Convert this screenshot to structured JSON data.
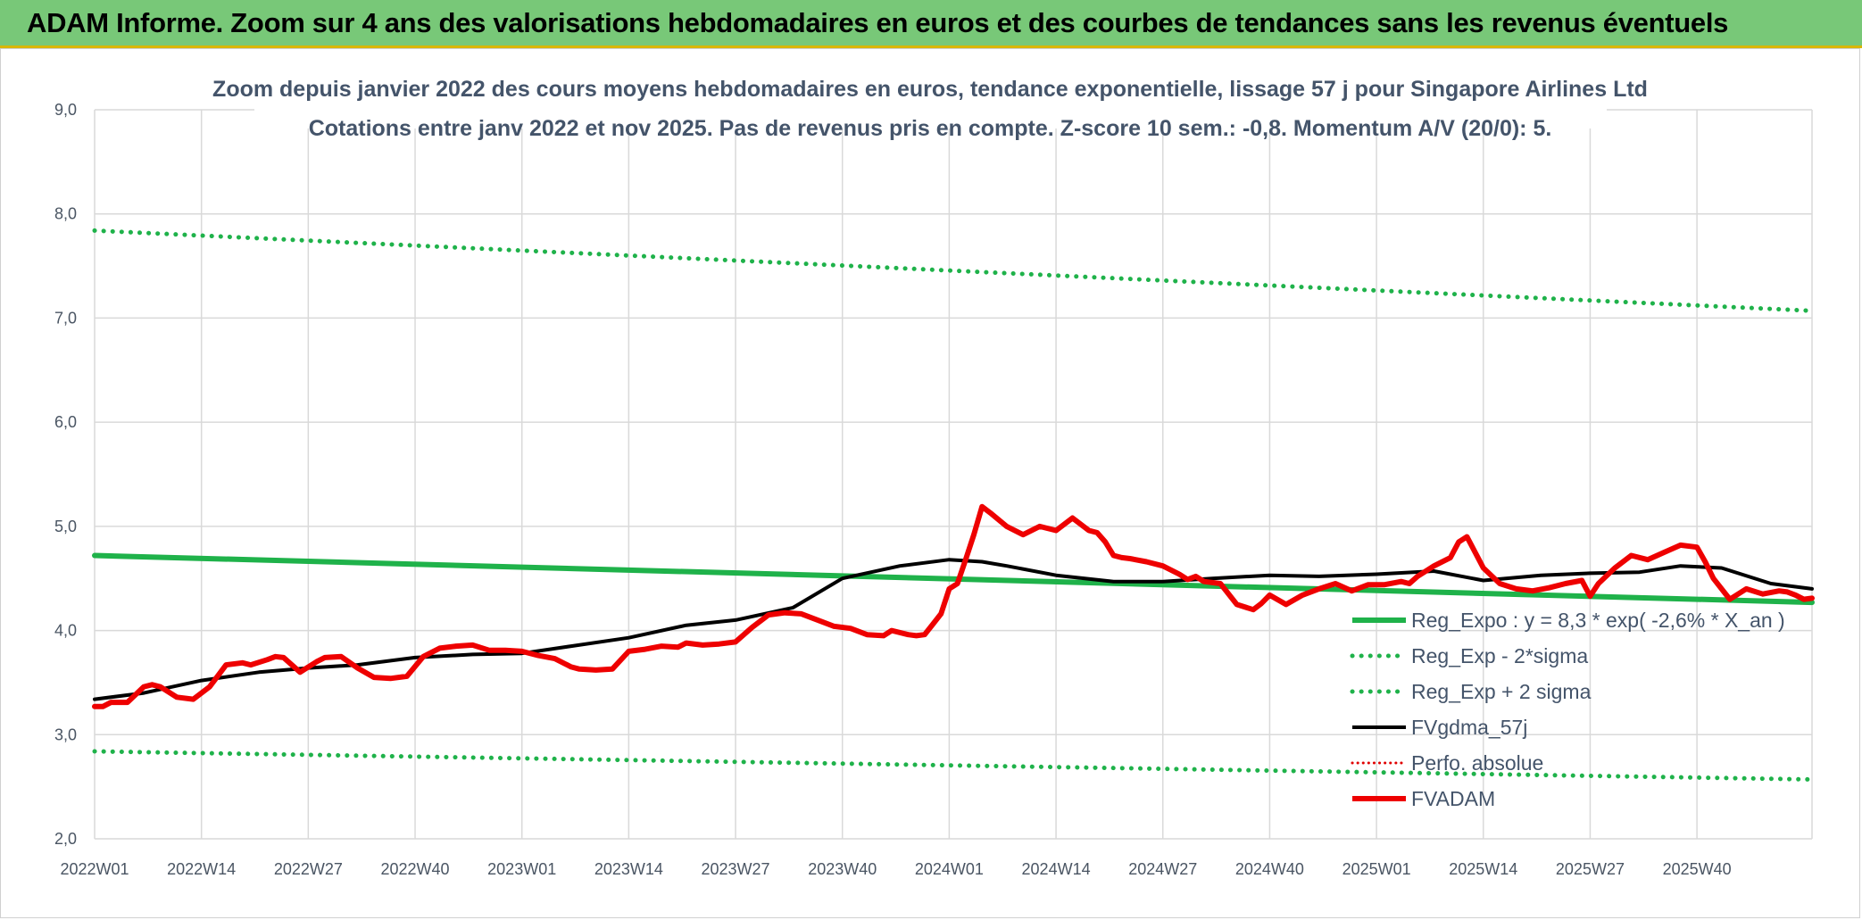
{
  "banner": {
    "title": "ADAM Informe. Zoom sur 4 ans des valorisations hebdomadaires en euros et des courbes de tendances sans les revenus éventuels"
  },
  "chart_data": {
    "type": "line",
    "title": "Zoom depuis janvier 2022 des cours moyens hebdomadaires en euros, tendance exponentielle, lissage 57 j pour Singapore Airlines Ltd",
    "subtitle": "Cotations entre janv 2022 et nov 2025. Pas de revenus pris en compte. Z-score 10 sem.: -0,8. Momentum A/V (20/0): 5.",
    "xlabel": "",
    "ylabel": "",
    "x_ticks": [
      "2022W01",
      "2022W14",
      "2022W27",
      "2022W40",
      "2023W01",
      "2023W14",
      "2023W27",
      "2023W40",
      "2024W01",
      "2024W14",
      "2024W27",
      "2024W40",
      "2025W01",
      "2025W14",
      "2025W27",
      "2025W40"
    ],
    "y_ticks": [
      "2,0",
      "3,0",
      "4,0",
      "5,0",
      "6,0",
      "7,0",
      "8,0",
      "9,0"
    ],
    "ylim": [
      2.0,
      9.0
    ],
    "xlim": [
      0,
      209
    ],
    "grid": true,
    "legend_position": "right-inside",
    "series": [
      {
        "name": "Reg_Expo : y = 8,3 * exp( -2,6% *  X_an )",
        "style": "solid",
        "color": "#1fb24a",
        "width": 6,
        "x": [
          0,
          209
        ],
        "values": [
          4.72,
          4.27
        ]
      },
      {
        "name": "Reg_Exp - 2*sigma",
        "style": "dotted",
        "color": "#1fb24a",
        "width": 5,
        "x": [
          0,
          209
        ],
        "values": [
          2.84,
          2.57
        ]
      },
      {
        "name": "Reg_Exp + 2 sigma",
        "style": "dotted",
        "color": "#1fb24a",
        "width": 5,
        "x": [
          0,
          209
        ],
        "values": [
          7.84,
          7.07
        ]
      },
      {
        "name": "FVgdma_57j",
        "style": "solid",
        "color": "#000000",
        "width": 4,
        "x": [
          0,
          6,
          13,
          20,
          26,
          32,
          39,
          46,
          52,
          58,
          65,
          72,
          78,
          85,
          91,
          98,
          104,
          108,
          111,
          117,
          124,
          130,
          136,
          143,
          149,
          156,
          163,
          169,
          176,
          182,
          188,
          193,
          198,
          204,
          209
        ],
        "values": [
          3.34,
          3.4,
          3.52,
          3.6,
          3.64,
          3.67,
          3.74,
          3.77,
          3.78,
          3.85,
          3.93,
          4.05,
          4.1,
          4.22,
          4.5,
          4.62,
          4.68,
          4.66,
          4.62,
          4.53,
          4.47,
          4.47,
          4.5,
          4.53,
          4.52,
          4.54,
          4.57,
          4.48,
          4.53,
          4.55,
          4.56,
          4.62,
          4.6,
          4.45,
          4.4
        ]
      },
      {
        "name": "Perfo. absolue",
        "style": "dotted",
        "color": "#e00000",
        "width": 3,
        "x": [],
        "values": []
      },
      {
        "name": "FVADAM",
        "style": "solid",
        "color": "#ee0000",
        "width": 6,
        "x": [
          0,
          1,
          2,
          4,
          6,
          7,
          8,
          10,
          12,
          14,
          16,
          18,
          19,
          21,
          22,
          23,
          25,
          27,
          28,
          30,
          32,
          34,
          36,
          38,
          40,
          42,
          44,
          46,
          48,
          50,
          52,
          54,
          56,
          58,
          59,
          61,
          63,
          65,
          67,
          69,
          71,
          72,
          74,
          76,
          78,
          80,
          82,
          84,
          86,
          88,
          90,
          92,
          94,
          96,
          97,
          99,
          100,
          101,
          102,
          103,
          104,
          105,
          106,
          107,
          108,
          109,
          111,
          113,
          115,
          117,
          119,
          121,
          122,
          123,
          124,
          125,
          126,
          128,
          130,
          132,
          133,
          134,
          135,
          137,
          139,
          141,
          142,
          143,
          145,
          147,
          149,
          151,
          153,
          155,
          157,
          159,
          160,
          161,
          163,
          165,
          166,
          167,
          169,
          171,
          173,
          175,
          177,
          179,
          181,
          182,
          183,
          185,
          187,
          189,
          191,
          193,
          195,
          196,
          197,
          199,
          201,
          203,
          205,
          206,
          207,
          208,
          209
        ],
        "values": [
          3.27,
          3.27,
          3.31,
          3.31,
          3.46,
          3.48,
          3.46,
          3.36,
          3.34,
          3.46,
          3.67,
          3.69,
          3.67,
          3.72,
          3.75,
          3.74,
          3.6,
          3.7,
          3.74,
          3.75,
          3.64,
          3.55,
          3.54,
          3.56,
          3.75,
          3.83,
          3.85,
          3.86,
          3.81,
          3.81,
          3.8,
          3.76,
          3.73,
          3.65,
          3.63,
          3.62,
          3.63,
          3.8,
          3.82,
          3.85,
          3.84,
          3.88,
          3.86,
          3.87,
          3.89,
          4.03,
          4.15,
          4.17,
          4.16,
          4.1,
          4.04,
          4.02,
          3.96,
          3.95,
          4.0,
          3.96,
          3.95,
          3.96,
          4.06,
          4.16,
          4.4,
          4.45,
          4.68,
          4.92,
          5.19,
          5.13,
          5.0,
          4.92,
          5.0,
          4.96,
          5.08,
          4.96,
          4.94,
          4.85,
          4.72,
          4.7,
          4.69,
          4.66,
          4.62,
          4.54,
          4.49,
          4.52,
          4.47,
          4.45,
          4.25,
          4.2,
          4.26,
          4.34,
          4.25,
          4.34,
          4.4,
          4.45,
          4.38,
          4.44,
          4.44,
          4.47,
          4.45,
          4.52,
          4.62,
          4.7,
          4.85,
          4.9,
          4.6,
          4.45,
          4.4,
          4.38,
          4.41,
          4.45,
          4.48,
          4.33,
          4.45,
          4.6,
          4.72,
          4.68,
          4.75,
          4.82,
          4.8,
          4.66,
          4.5,
          4.3,
          4.4,
          4.35,
          4.38,
          4.37,
          4.34,
          4.3,
          4.31
        ]
      }
    ]
  }
}
